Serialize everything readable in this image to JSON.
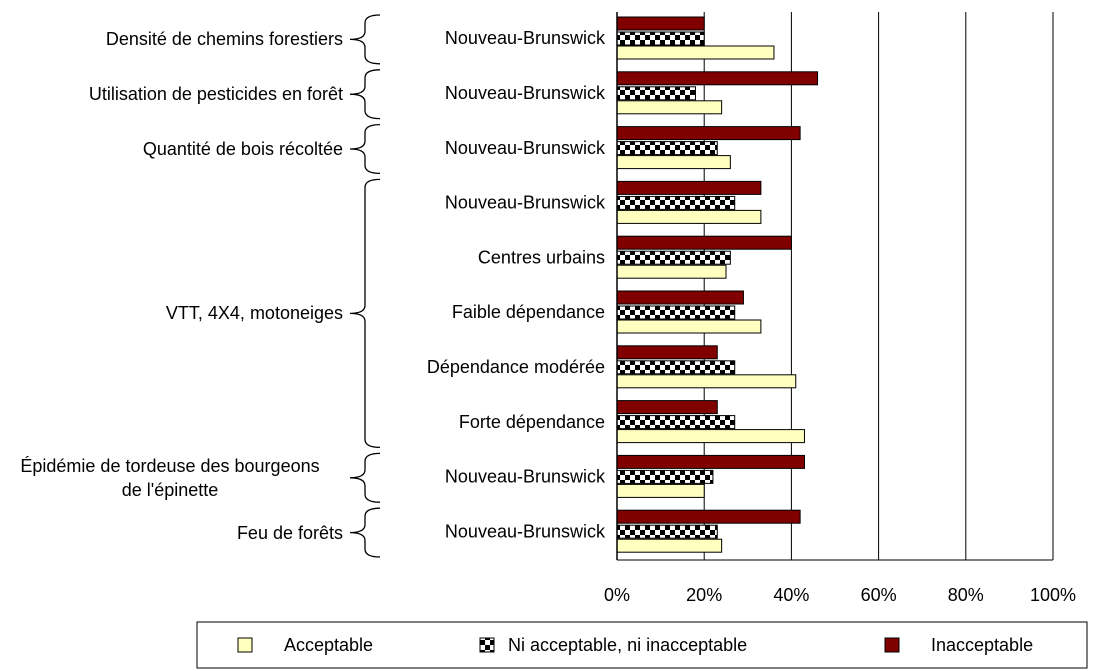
{
  "chart_data": {
    "type": "bar",
    "orientation": "horizontal",
    "groups": [
      {
        "label": "Densité de chemins forestiers",
        "categories": [
          "Nouveau-Brunswick"
        ]
      },
      {
        "label": "Utilisation de pesticides en forêt",
        "categories": [
          "Nouveau-Brunswick"
        ]
      },
      {
        "label": "Quantité de bois récoltée",
        "categories": [
          "Nouveau-Brunswick"
        ]
      },
      {
        "label": "VTT, 4X4, motoneiges",
        "categories": [
          "Nouveau-Brunswick",
          "Centres urbains",
          "Faible dépendance",
          "Dépendance modérée",
          "Forte dépendance"
        ]
      },
      {
        "label": "Épidémie de tordeuse des bourgeons de l'épinette",
        "categories": [
          "Nouveau-Brunswick"
        ]
      },
      {
        "label": "Feu de forêts",
        "categories": [
          "Nouveau-Brunswick"
        ]
      }
    ],
    "series": [
      {
        "name": "Acceptable",
        "color": "#ffffc0",
        "values": [
          36,
          24,
          26,
          33,
          25,
          33,
          41,
          43,
          20,
          24
        ]
      },
      {
        "name": "Ni acceptable, ni inacceptable",
        "color": "checker",
        "values": [
          20,
          18,
          23,
          27,
          26,
          27,
          27,
          27,
          22,
          23
        ]
      },
      {
        "name": "Inacceptable",
        "color": "#800000",
        "values": [
          20,
          46,
          42,
          33,
          40,
          29,
          23,
          23,
          43,
          42
        ]
      }
    ],
    "xlim": [
      0,
      100
    ],
    "xticks": [
      {
        "value": 0,
        "label": "0%"
      },
      {
        "value": 20,
        "label": "20%"
      },
      {
        "value": 40,
        "label": "40%"
      },
      {
        "value": 60,
        "label": "60%"
      },
      {
        "value": 80,
        "label": "80%"
      },
      {
        "value": 100,
        "label": "100%"
      }
    ],
    "grid": true,
    "legend": "bottom"
  }
}
